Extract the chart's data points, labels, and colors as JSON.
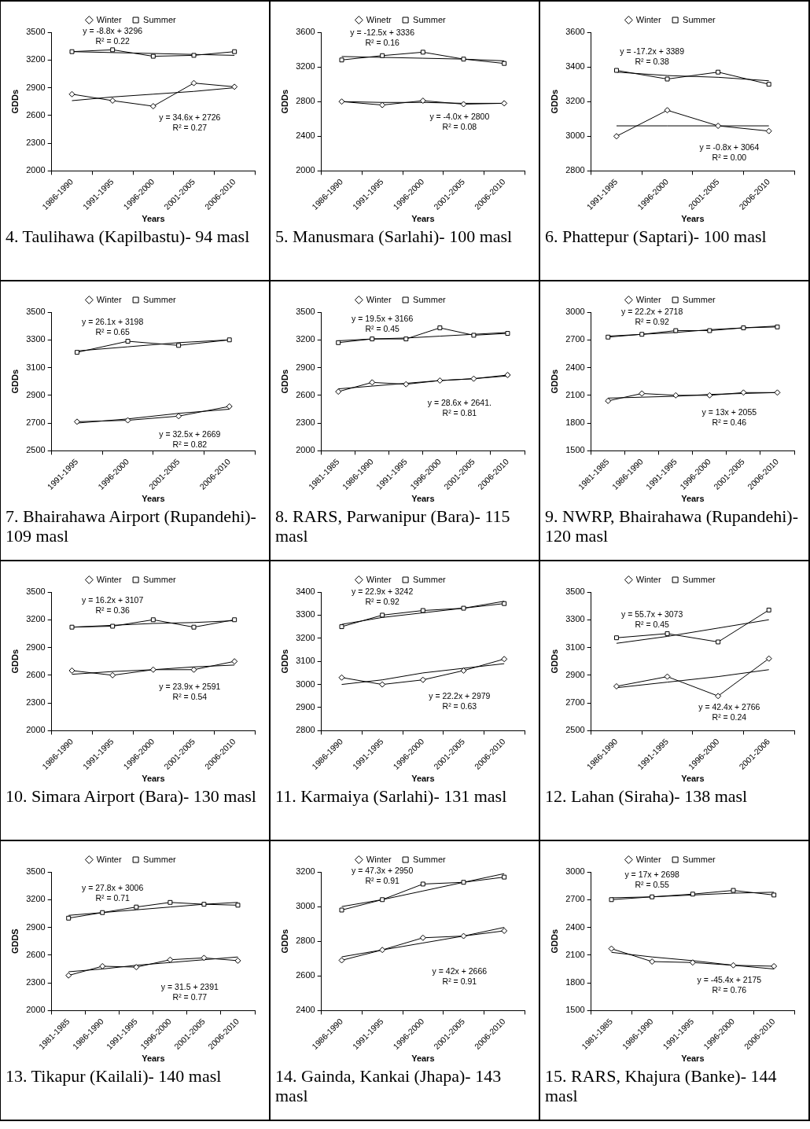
{
  "chart_data": [
    {
      "type": "line",
      "categories": [
        "1986-1990",
        "1991-1995",
        "1996-2000",
        "2001-2005",
        "2006-2010"
      ],
      "ylim": [
        2000,
        3500
      ],
      "yticks": [
        2000,
        2300,
        2600,
        2900,
        3200,
        3500
      ],
      "xlabel": "Years",
      "ylabel": "GDDs",
      "legend": "top",
      "series": [
        {
          "name": "Winter",
          "color": "#000000",
          "marker": "diamond",
          "values": [
            2830,
            2760,
            2700,
            2950,
            2910
          ]
        },
        {
          "name": "Summer",
          "color": "#000000",
          "marker": "square",
          "values": [
            3290,
            3310,
            3240,
            3250,
            3290
          ]
        },
        {
          "type": "line",
          "color": "#000000",
          "marker": "none",
          "values": [
            2760,
            2800,
            2830,
            2860,
            2900
          ]
        },
        {
          "type": "line",
          "color": "#000000",
          "marker": "none",
          "values": [
            3290,
            3280,
            3270,
            3260,
            3250
          ]
        }
      ],
      "annotations": [
        "y = -8.8x + 3296",
        "R² = 0.22",
        "y = 34.6x + 2726",
        "R² = 0.27",
        "4. Taulihawa (Kapilbastu)- 94 masl"
      ]
    },
    {
      "type": "line",
      "categories": [
        "1986-1990",
        "1991-1995",
        "1996-2000",
        "2001-2005",
        "2006-2010"
      ],
      "ylim": [
        2000,
        3600
      ],
      "yticks": [
        2000,
        2400,
        2800,
        3200,
        3600
      ],
      "xlabel": "Years",
      "ylabel": "GDDs",
      "legend": "top",
      "series": [
        {
          "name": "Winetr",
          "color": "#000000",
          "marker": "diamond",
          "values": [
            2800,
            2760,
            2810,
            2770,
            2780
          ]
        },
        {
          "name": "Summer",
          "color": "#000000",
          "marker": "square",
          "values": [
            3280,
            3330,
            3370,
            3290,
            3240
          ]
        },
        {
          "type": "line",
          "color": "#000000",
          "marker": "none",
          "values": [
            2800,
            2790,
            2790,
            2780,
            2780
          ]
        },
        {
          "type": "line",
          "color": "#000000",
          "marker": "none",
          "values": [
            3320,
            3310,
            3300,
            3290,
            3270
          ]
        }
      ],
      "annotations": [
        "y = -12.5x + 3336",
        "R² = 0.16",
        "y = -4.0x + 2800",
        "R² = 0.08",
        "5. Manusmara (Sarlahi)- 100 masl"
      ]
    },
    {
      "type": "line",
      "categories": [
        "1991-1995",
        "1996-2000",
        "2001-2005",
        "2006-2010"
      ],
      "ylim": [
        2800,
        3600
      ],
      "yticks": [
        2800,
        3000,
        3200,
        3400,
        3600
      ],
      "xlabel": "Years",
      "ylabel": "GDDs",
      "legend": "top",
      "series": [
        {
          "name": "Winter",
          "color": "#000000",
          "marker": "diamond",
          "values": [
            3000,
            3150,
            3060,
            3030
          ]
        },
        {
          "name": "Summer",
          "color": "#000000",
          "marker": "square",
          "values": [
            3380,
            3330,
            3370,
            3300
          ]
        },
        {
          "type": "line",
          "color": "#000000",
          "marker": "none",
          "values": [
            3060,
            3060,
            3060,
            3060
          ]
        },
        {
          "type": "line",
          "color": "#000000",
          "marker": "none",
          "values": [
            3370,
            3350,
            3340,
            3320
          ]
        }
      ],
      "annotations": [
        "y = -17.2x + 3389",
        "R² = 0.38",
        "y = -0.8x + 3064",
        "R² = 0.00",
        "6. Phattepur (Saptari)- 100 masl"
      ]
    },
    {
      "type": "line",
      "categories": [
        "1991-1995",
        "1996-2000",
        "2001-2005",
        "2006-2010"
      ],
      "ylim": [
        2500,
        3500
      ],
      "yticks": [
        2500,
        2700,
        2900,
        3100,
        3300,
        3500
      ],
      "xlabel": "Years",
      "ylabel": "GDDs",
      "legend": "top",
      "series": [
        {
          "name": "Winter",
          "color": "#000000",
          "marker": "diamond",
          "values": [
            2710,
            2720,
            2750,
            2820
          ]
        },
        {
          "name": "Summer",
          "color": "#000000",
          "marker": "square",
          "values": [
            3210,
            3290,
            3260,
            3300
          ]
        },
        {
          "type": "line",
          "color": "#000000",
          "marker": "none",
          "values": [
            2700,
            2730,
            2770,
            2800
          ]
        },
        {
          "type": "line",
          "color": "#000000",
          "marker": "none",
          "values": [
            3220,
            3250,
            3280,
            3300
          ]
        }
      ],
      "annotations": [
        "y = 26.1x + 3198",
        "R² = 0.65",
        "y = 32.5x + 2669",
        "R² = 0.82",
        "7. Bhairahawa Airport (Rupandehi)- 109 masl"
      ]
    },
    {
      "type": "line",
      "categories": [
        "1981-1985",
        "1986-1990",
        "1991-1995",
        "1996-2000",
        "2001-2005",
        "2006-2010"
      ],
      "ylim": [
        2000,
        3500
      ],
      "yticks": [
        2000,
        2300,
        2600,
        2900,
        3200,
        3500
      ],
      "xlabel": "Years",
      "ylabel": "GDDs",
      "legend": "top",
      "series": [
        {
          "name": "Winter",
          "color": "#000000",
          "marker": "diamond",
          "values": [
            2640,
            2740,
            2720,
            2760,
            2780,
            2820
          ]
        },
        {
          "name": "Summer",
          "color": "#000000",
          "marker": "square",
          "values": [
            3170,
            3210,
            3210,
            3330,
            3250,
            3270
          ]
        },
        {
          "type": "line",
          "color": "#000000",
          "marker": "none",
          "values": [
            2670,
            2700,
            2730,
            2760,
            2780,
            2810
          ]
        },
        {
          "type": "line",
          "color": "#000000",
          "marker": "none",
          "values": [
            3190,
            3210,
            3220,
            3240,
            3260,
            3280
          ]
        }
      ],
      "annotations": [
        "y = 19.5x + 3166",
        "R² = 0.45",
        "y = 28.6x + 2641.",
        "R² = 0.81",
        "8. RARS, Parwanipur (Bara)- 115 masl"
      ]
    },
    {
      "type": "line",
      "categories": [
        "1981-1985",
        "1986-1990",
        "1991-1995",
        "1996-2000",
        "2001-2005",
        "2006-2010"
      ],
      "ylim": [
        1500,
        3000
      ],
      "yticks": [
        1500,
        1800,
        2100,
        2400,
        2700,
        3000
      ],
      "xlabel": "Years",
      "ylabel": "GDDs",
      "legend": "top",
      "series": [
        {
          "name": "Winter",
          "color": "#000000",
          "marker": "diamond",
          "values": [
            2040,
            2120,
            2100,
            2100,
            2130,
            2130
          ]
        },
        {
          "name": "Summer",
          "color": "#000000",
          "marker": "square",
          "values": [
            2730,
            2760,
            2800,
            2800,
            2830,
            2840
          ]
        },
        {
          "type": "line",
          "color": "#000000",
          "marker": "none",
          "values": [
            2070,
            2080,
            2090,
            2110,
            2120,
            2130
          ]
        },
        {
          "type": "line",
          "color": "#000000",
          "marker": "none",
          "values": [
            2740,
            2760,
            2780,
            2810,
            2830,
            2850
          ]
        }
      ],
      "annotations": [
        "y = 22.2x + 2718",
        "R² = 0.92",
        "y = 13x + 2055",
        "R² = 0.46",
        "9. NWRP, Bhairahawa (Rupandehi)- 120 masl"
      ]
    },
    {
      "type": "line",
      "categories": [
        "1986-1990",
        "1991-1995",
        "1996-2000",
        "2001-2005",
        "2006-2010"
      ],
      "ylim": [
        2000,
        3500
      ],
      "yticks": [
        2000,
        2300,
        2600,
        2900,
        3200,
        3500
      ],
      "xlabel": "Years",
      "ylabel": "GDDs",
      "legend": "top",
      "series": [
        {
          "name": "Winter",
          "color": "#000000",
          "marker": "diamond",
          "values": [
            2650,
            2600,
            2660,
            2660,
            2750
          ]
        },
        {
          "name": "Summer",
          "color": "#000000",
          "marker": "square",
          "values": [
            3120,
            3130,
            3200,
            3120,
            3200
          ]
        },
        {
          "type": "line",
          "color": "#000000",
          "marker": "none",
          "values": [
            2610,
            2640,
            2660,
            2690,
            2710
          ]
        },
        {
          "type": "line",
          "color": "#000000",
          "marker": "none",
          "values": [
            3120,
            3140,
            3160,
            3170,
            3190
          ]
        }
      ],
      "annotations": [
        "y = 16.2x + 3107",
        "R² = 0.36",
        "y = 23.9x + 2591",
        "R² = 0.54",
        "10. Simara Airport (Bara)- 130 masl"
      ]
    },
    {
      "type": "line",
      "categories": [
        "1986-1990",
        "1991-1995",
        "1996-2000",
        "2001-2005",
        "2006-2010"
      ],
      "ylim": [
        2800,
        3400
      ],
      "yticks": [
        2800,
        2900,
        3000,
        3100,
        3200,
        3300,
        3400
      ],
      "xlabel": "Years",
      "ylabel": "GDDs",
      "legend": "top",
      "series": [
        {
          "name": "Winter",
          "color": "#000000",
          "marker": "diamond",
          "values": [
            3030,
            3000,
            3020,
            3060,
            3110
          ]
        },
        {
          "name": "Summer",
          "color": "#000000",
          "marker": "square",
          "values": [
            3250,
            3300,
            3320,
            3330,
            3350
          ]
        },
        {
          "type": "line",
          "color": "#000000",
          "marker": "none",
          "values": [
            3000,
            3020,
            3050,
            3070,
            3090
          ]
        },
        {
          "type": "line",
          "color": "#000000",
          "marker": "none",
          "values": [
            3260,
            3290,
            3310,
            3330,
            3360
          ]
        }
      ],
      "annotations": [
        "y = 22.9x + 3242",
        "R² = 0.92",
        "y = 22.2x + 2979",
        "R² = 0.63",
        "11. Karmaiya (Sarlahi)- 131 masl"
      ]
    },
    {
      "type": "line",
      "categories": [
        "1986-1990",
        "1991-1995",
        "1996-2000",
        "2001-2006"
      ],
      "ylim": [
        2500,
        3500
      ],
      "yticks": [
        2500,
        2700,
        2900,
        3100,
        3300,
        3500
      ],
      "xlabel": "Years",
      "ylabel": "GDDs",
      "legend": "top",
      "series": [
        {
          "name": "Winter",
          "color": "#000000",
          "marker": "diamond",
          "values": [
            2820,
            2890,
            2750,
            3020
          ]
        },
        {
          "name": "Summer",
          "color": "#000000",
          "marker": "square",
          "values": [
            3170,
            3200,
            3140,
            3370
          ]
        },
        {
          "type": "line",
          "color": "#000000",
          "marker": "none",
          "values": [
            2810,
            2850,
            2890,
            2940
          ]
        },
        {
          "type": "line",
          "color": "#000000",
          "marker": "none",
          "values": [
            3130,
            3180,
            3240,
            3300
          ]
        }
      ],
      "annotations": [
        "y = 55.7x + 3073",
        "R² = 0.45",
        "y = 42.4x + 2766",
        "R² = 0.24",
        "12. Lahan (Siraha)- 138 masl"
      ]
    },
    {
      "type": "line",
      "categories": [
        "1981-1985",
        "1986-1990",
        "1991-1995",
        "1996-2000",
        "2001-2005",
        "2006-2010"
      ],
      "ylim": [
        2000,
        3500
      ],
      "yticks": [
        2000,
        2300,
        2600,
        2900,
        3200,
        3500
      ],
      "xlabel": "Years",
      "ylabel": "GDDS",
      "legend": "top",
      "series": [
        {
          "name": "Winter",
          "color": "#000000",
          "marker": "diamond",
          "values": [
            2380,
            2480,
            2470,
            2550,
            2570,
            2540
          ]
        },
        {
          "name": "Summer",
          "color": "#000000",
          "marker": "square",
          "values": [
            3000,
            3060,
            3120,
            3170,
            3150,
            3140
          ]
        },
        {
          "type": "line",
          "color": "#000000",
          "marker": "none",
          "values": [
            2420,
            2450,
            2490,
            2520,
            2550,
            2580
          ]
        },
        {
          "type": "line",
          "color": "#000000",
          "marker": "none",
          "values": [
            3030,
            3060,
            3090,
            3120,
            3150,
            3170
          ]
        }
      ],
      "annotations": [
        "y = 27.8x + 3006",
        "R² = 0.71",
        "y = 31.5 + 2391",
        "R² = 0.77",
        "13. Tikapur (Kailali)- 140 masl"
      ]
    },
    {
      "type": "line",
      "categories": [
        "1986-1990",
        "1991-1995",
        "1996-2000",
        "2001-2005",
        "2006-2010"
      ],
      "ylim": [
        2400,
        3200
      ],
      "yticks": [
        2400,
        2600,
        2800,
        3000,
        3200
      ],
      "xlabel": "Years",
      "ylabel": "GDDs",
      "legend": "top",
      "series": [
        {
          "name": "Winter",
          "color": "#000000",
          "marker": "diamond",
          "values": [
            2690,
            2750,
            2820,
            2830,
            2860
          ]
        },
        {
          "name": "Summer",
          "color": "#000000",
          "marker": "square",
          "values": [
            2980,
            3040,
            3130,
            3140,
            3170
          ]
        },
        {
          "type": "line",
          "color": "#000000",
          "marker": "none",
          "values": [
            2710,
            2750,
            2790,
            2830,
            2880
          ]
        },
        {
          "type": "line",
          "color": "#000000",
          "marker": "none",
          "values": [
            3000,
            3040,
            3090,
            3140,
            3190
          ]
        }
      ],
      "annotations": [
        "y = 47.3x + 2950",
        "R² = 0.91",
        "y = 42x + 2666",
        "R² = 0.91",
        "14. Gainda, Kankai (Jhapa)- 143 masl"
      ]
    },
    {
      "type": "line",
      "categories": [
        "1981-1985",
        "1986-1990",
        "1991-1995",
        "1996-2000",
        "2006-2010"
      ],
      "ylim": [
        1500,
        3000
      ],
      "yticks": [
        1500,
        1800,
        2100,
        2400,
        2700,
        3000
      ],
      "xlabel": "Years",
      "ylabel": "GDDs",
      "legend": "top",
      "series": [
        {
          "name": "Winter",
          "color": "#000000",
          "marker": "diamond",
          "values": [
            2170,
            2030,
            2020,
            1990,
            1980
          ]
        },
        {
          "name": "Summer",
          "color": "#000000",
          "marker": "square",
          "values": [
            2700,
            2730,
            2760,
            2800,
            2750
          ]
        },
        {
          "type": "line",
          "color": "#000000",
          "marker": "none",
          "values": [
            2130,
            2080,
            2040,
            1990,
            1950
          ]
        },
        {
          "type": "line",
          "color": "#000000",
          "marker": "none",
          "values": [
            2720,
            2730,
            2750,
            2770,
            2780
          ]
        }
      ],
      "annotations": [
        "y = 17x + 2698",
        "R² = 0.55",
        "y = -45.4x + 2175",
        "R² = 0.76",
        "15. RARS, Khajura (Banke)- 144 masl"
      ]
    }
  ]
}
